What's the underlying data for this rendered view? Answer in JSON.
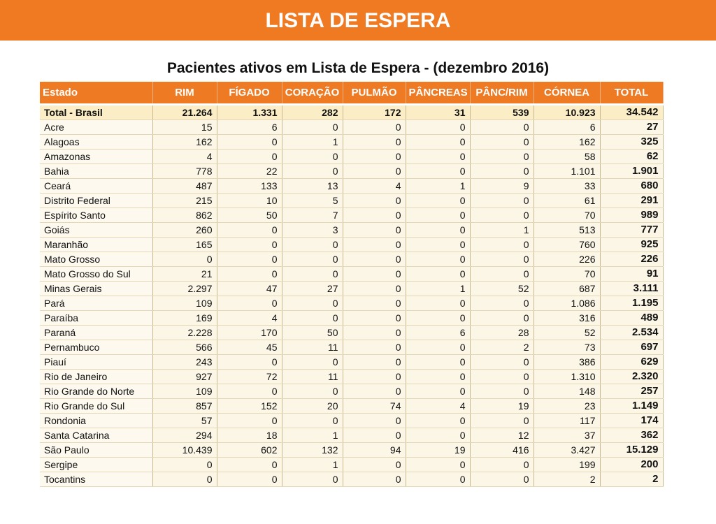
{
  "header": {
    "title": "LISTA DE ESPERA"
  },
  "table": {
    "title": "Pacientes ativos em Lista de Espera - (dezembro 2016)",
    "columns": [
      "Estado",
      "RIM",
      "FÍGADO",
      "CORAÇÃO",
      "PULMÃO",
      "PÂNCREAS",
      "PÂNC/RIM",
      "CÓRNEA",
      "TOTAL"
    ],
    "rows": [
      [
        "Total - Brasil",
        "21.264",
        "1.331",
        "282",
        "172",
        "31",
        "539",
        "10.923",
        "34.542"
      ],
      [
        "Acre",
        "15",
        "6",
        "0",
        "0",
        "0",
        "0",
        "6",
        "27"
      ],
      [
        "Alagoas",
        "162",
        "0",
        "1",
        "0",
        "0",
        "0",
        "162",
        "325"
      ],
      [
        "Amazonas",
        "4",
        "0",
        "0",
        "0",
        "0",
        "0",
        "58",
        "62"
      ],
      [
        "Bahia",
        "778",
        "22",
        "0",
        "0",
        "0",
        "0",
        "1.101",
        "1.901"
      ],
      [
        "Ceará",
        "487",
        "133",
        "13",
        "4",
        "1",
        "9",
        "33",
        "680"
      ],
      [
        "Distrito Federal",
        "215",
        "10",
        "5",
        "0",
        "0",
        "0",
        "61",
        "291"
      ],
      [
        "Espírito Santo",
        "862",
        "50",
        "7",
        "0",
        "0",
        "0",
        "70",
        "989"
      ],
      [
        "Goiás",
        "260",
        "0",
        "3",
        "0",
        "0",
        "1",
        "513",
        "777"
      ],
      [
        "Maranhão",
        "165",
        "0",
        "0",
        "0",
        "0",
        "0",
        "760",
        "925"
      ],
      [
        "Mato Grosso",
        "0",
        "0",
        "0",
        "0",
        "0",
        "0",
        "226",
        "226"
      ],
      [
        "Mato Grosso do Sul",
        "21",
        "0",
        "0",
        "0",
        "0",
        "0",
        "70",
        "91"
      ],
      [
        "Minas Gerais",
        "2.297",
        "47",
        "27",
        "0",
        "1",
        "52",
        "687",
        "3.111"
      ],
      [
        "Pará",
        "109",
        "0",
        "0",
        "0",
        "0",
        "0",
        "1.086",
        "1.195"
      ],
      [
        "Paraíba",
        "169",
        "4",
        "0",
        "0",
        "0",
        "0",
        "316",
        "489"
      ],
      [
        "Paraná",
        "2.228",
        "170",
        "50",
        "0",
        "6",
        "28",
        "52",
        "2.534"
      ],
      [
        "Pernambuco",
        "566",
        "45",
        "11",
        "0",
        "0",
        "2",
        "73",
        "697"
      ],
      [
        "Piauí",
        "243",
        "0",
        "0",
        "0",
        "0",
        "0",
        "386",
        "629"
      ],
      [
        "Rio de Janeiro",
        "927",
        "72",
        "11",
        "0",
        "0",
        "0",
        "1.310",
        "2.320"
      ],
      [
        "Rio Grande do Norte",
        "109",
        "0",
        "0",
        "0",
        "0",
        "0",
        "148",
        "257"
      ],
      [
        "Rio Grande do Sul",
        "857",
        "152",
        "20",
        "74",
        "4",
        "19",
        "23",
        "1.149"
      ],
      [
        "Rondonia",
        "57",
        "0",
        "0",
        "0",
        "0",
        "0",
        "117",
        "174"
      ],
      [
        "Santa Catarina",
        "294",
        "18",
        "1",
        "0",
        "0",
        "12",
        "37",
        "362"
      ],
      [
        "São Paulo",
        "10.439",
        "602",
        "132",
        "94",
        "19",
        "416",
        "3.427",
        "15.129"
      ],
      [
        "Sergipe",
        "0",
        "0",
        "1",
        "0",
        "0",
        "0",
        "199",
        "200"
      ],
      [
        "Tocantins",
        "0",
        "0",
        "0",
        "0",
        "0",
        "0",
        "2",
        "2"
      ]
    ]
  }
}
